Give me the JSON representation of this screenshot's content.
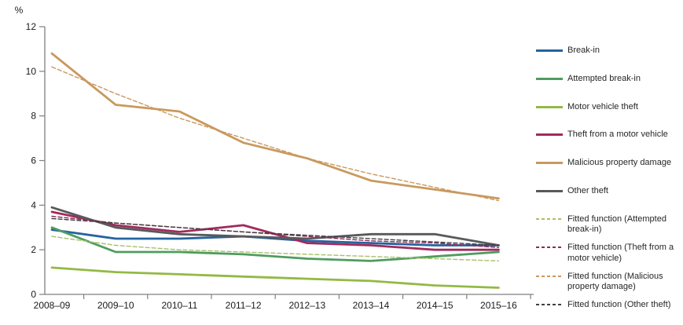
{
  "chart_data": {
    "type": "line",
    "title": "",
    "ylabel": "%",
    "xlabel": "",
    "ylim": [
      0,
      12
    ],
    "ytick_step": 2,
    "grid": false,
    "legend_position": "right",
    "categories": [
      "2008–09",
      "2009–10",
      "2010–11",
      "2011–12",
      "2012–13",
      "2013–14",
      "2014–15",
      "2015–16"
    ],
    "series": [
      {
        "name": "Break-in",
        "color": "#2563A0",
        "style": "solid",
        "values": [
          2.9,
          2.5,
          2.5,
          2.6,
          2.4,
          2.3,
          2.2,
          2.2
        ]
      },
      {
        "name": "Attempted break-in",
        "color": "#4F9C5F",
        "style": "solid",
        "values": [
          3.0,
          1.9,
          1.9,
          1.8,
          1.6,
          1.5,
          1.7,
          1.9
        ]
      },
      {
        "name": "Motor vehicle theft",
        "color": "#93B945",
        "style": "solid",
        "values": [
          1.2,
          1.0,
          0.9,
          0.8,
          0.7,
          0.6,
          0.4,
          0.3
        ]
      },
      {
        "name": "Theft from a motor vehicle",
        "color": "#A02B5C",
        "style": "solid",
        "values": [
          3.7,
          3.1,
          2.8,
          3.1,
          2.3,
          2.2,
          2.0,
          2.0
        ]
      },
      {
        "name": "Malicious property damage",
        "color": "#C9995E",
        "style": "solid",
        "values": [
          10.8,
          8.5,
          8.2,
          6.8,
          6.1,
          5.1,
          4.7,
          4.3
        ]
      },
      {
        "name": "Other theft",
        "color": "#58595B",
        "style": "solid",
        "values": [
          3.9,
          3.0,
          2.7,
          2.6,
          2.5,
          2.7,
          2.7,
          2.2
        ]
      },
      {
        "name": "Fitted function (Attempted break-in)",
        "color": "#A8C06A",
        "style": "dashed",
        "values": [
          2.6,
          2.2,
          2.0,
          1.9,
          1.8,
          1.7,
          1.6,
          1.5
        ]
      },
      {
        "name": "Fitted function (Theft from a motor vehicle)",
        "color": "#8E2A55",
        "style": "dashed",
        "values": [
          3.5,
          3.2,
          3.0,
          2.8,
          2.6,
          2.4,
          2.3,
          2.1
        ]
      },
      {
        "name": "Fitted function (Malicious property damage)",
        "color": "#C9995E",
        "style": "dashed",
        "values": [
          10.2,
          9.0,
          7.9,
          7.0,
          6.1,
          5.4,
          4.8,
          4.2
        ]
      },
      {
        "name": "Fitted function (Other theft)",
        "color": "#3F3F41",
        "style": "dashed",
        "values": [
          3.4,
          3.2,
          3.0,
          2.8,
          2.65,
          2.5,
          2.35,
          2.2
        ]
      }
    ],
    "axis_color": "#808080",
    "tick_label_color": "#1a1a1a"
  }
}
